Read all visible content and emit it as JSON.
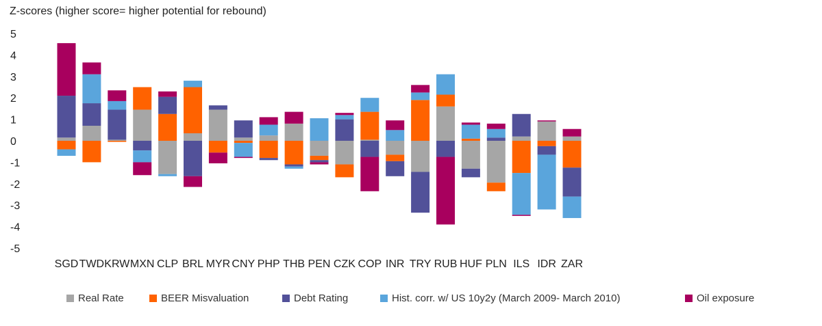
{
  "chart_data": {
    "type": "bar",
    "stacked": true,
    "title": "Z-scores (higher score= higher potential for rebound)",
    "xlabel": "",
    "ylabel": "",
    "ylim": [
      -5,
      5
    ],
    "yticks": [
      5,
      4,
      3,
      2,
      1,
      0,
      -1,
      -2,
      -3,
      -4,
      -5
    ],
    "grid": false,
    "legend_position": "bottom",
    "categories": [
      "SGD",
      "TWD",
      "KRW",
      "MXN",
      "CLP",
      "BRL",
      "MYR",
      "CNY",
      "PHP",
      "THB",
      "PEN",
      "CZK",
      "COP",
      "INR",
      "TRY",
      "RUB",
      "HUF",
      "PLN",
      "ILS",
      "IDR",
      "ZAR"
    ],
    "series": [
      {
        "name": "Real Rate",
        "color": "#a6a6a6",
        "values": [
          0.15,
          0.7,
          0.05,
          1.45,
          -1.55,
          0.35,
          1.45,
          0.15,
          0.25,
          0.8,
          -0.7,
          -1.1,
          0.05,
          -0.65,
          -1.45,
          1.6,
          -1.3,
          -1.95,
          0.2,
          0.9,
          0.2
        ]
      },
      {
        "name": "BEER Misvaluation",
        "color": "#ff6200",
        "values": [
          -0.4,
          -1.0,
          -0.05,
          1.05,
          1.25,
          2.15,
          -0.55,
          -0.1,
          -0.8,
          -1.1,
          -0.2,
          -0.6,
          1.3,
          -0.3,
          1.9,
          0.55,
          0.1,
          -0.4,
          -1.5,
          -0.25,
          -1.25
        ]
      },
      {
        "name": "Debt Rating",
        "color": "#525199",
        "values": [
          1.95,
          1.05,
          1.4,
          -0.45,
          0.8,
          -1.65,
          0.2,
          0.8,
          -0.1,
          -0.1,
          -0.1,
          1.0,
          -0.75,
          -0.7,
          -1.9,
          -0.75,
          -0.4,
          0.15,
          1.05,
          -0.4,
          -1.35
        ]
      },
      {
        "name": "Hist. corr. w/ US 10y2y (March 2009- March 2010)",
        "color": "#5aa5dc",
        "values": [
          -0.3,
          1.35,
          0.4,
          -0.55,
          -0.1,
          0.3,
          0,
          -0.65,
          0.5,
          -0.1,
          1.05,
          0.2,
          0.65,
          0.5,
          0.35,
          0.95,
          0.65,
          0.4,
          -1.95,
          -2.55,
          -1.0
        ]
      },
      {
        "name": "Oil exposure",
        "color": "#a8005e",
        "values": [
          2.45,
          0.55,
          0.5,
          -0.6,
          0.25,
          -0.5,
          -0.5,
          -0.05,
          0.35,
          0.55,
          -0.1,
          0.1,
          -1.6,
          0.45,
          0.35,
          -3.15,
          0.1,
          0.25,
          -0.05,
          0.05,
          0.35
        ]
      }
    ]
  }
}
